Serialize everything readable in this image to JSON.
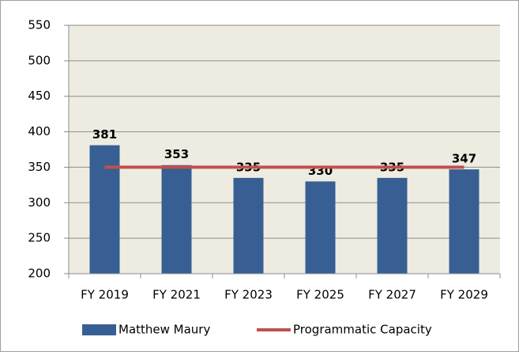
{
  "chart_data": {
    "type": "bar",
    "categories": [
      "FY 2019",
      "FY 2021",
      "FY 2023",
      "FY 2025",
      "FY 2027",
      "FY 2029"
    ],
    "series": [
      {
        "name": "Matthew Maury",
        "type": "bar",
        "color": "#375f93",
        "values": [
          381,
          353,
          335,
          330,
          335,
          347
        ]
      },
      {
        "name": "Programmatic Capacity",
        "type": "line",
        "color": "#c0504d",
        "values": [
          350,
          350,
          350,
          350,
          350,
          350
        ]
      }
    ],
    "ylim": [
      200,
      550
    ],
    "yticks": [
      200,
      250,
      300,
      350,
      400,
      450,
      500,
      550
    ],
    "grid": true,
    "legend": "bottom"
  }
}
